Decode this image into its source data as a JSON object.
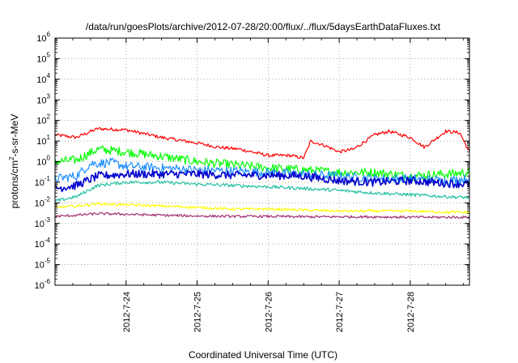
{
  "chart_data": {
    "type": "line",
    "title": "/data/run/goesPlots/archive/2012-07-28/20:00/flux/../flux/5daysEarthDataFluxes.txt",
    "xlabel": "Coordinated Universal Time (UTC)",
    "ylabel_parts": {
      "pre": "protons/cm",
      "sup": "2",
      "post": "-s-sr-MeV"
    },
    "y_scale": "log",
    "ylim_exponents": [
      -6,
      6
    ],
    "y_ticks": [
      {
        "base": "10",
        "exp": "6"
      },
      {
        "base": "10",
        "exp": "5"
      },
      {
        "base": "10",
        "exp": "4"
      },
      {
        "base": "10",
        "exp": "3"
      },
      {
        "base": "10",
        "exp": "2"
      },
      {
        "base": "10",
        "exp": "1"
      },
      {
        "base": "10",
        "exp": "0"
      },
      {
        "base": "10",
        "exp": "-1"
      },
      {
        "base": "10",
        "exp": "-2"
      },
      {
        "base": "10",
        "exp": "-3"
      },
      {
        "base": "10",
        "exp": "-4"
      },
      {
        "base": "10",
        "exp": "-5"
      },
      {
        "base": "10",
        "exp": "-6"
      }
    ],
    "x_range_days": [
      "2012-07-23 00:00",
      "2012-07-28 20:00"
    ],
    "x_ticks": [
      "2012-7-24",
      "2012-7-25",
      "2012-7-26",
      "2012-7-27",
      "2012-7-28"
    ],
    "grid": true,
    "series": [
      {
        "color": "#ff0000",
        "x": [
          23.0,
          23.3,
          23.6,
          24.0,
          24.2,
          24.5,
          25.0,
          25.3,
          25.6,
          26.0,
          26.3,
          26.5,
          26.6,
          26.8,
          27.0,
          27.2,
          27.5,
          27.7,
          28.0,
          28.2,
          28.5,
          28.7,
          28.83
        ],
        "values": [
          20,
          15,
          40,
          35,
          25,
          15,
          8,
          5,
          4,
          2,
          2,
          1.5,
          10,
          6,
          3,
          4,
          20,
          30,
          15,
          5,
          30,
          25,
          3
        ]
      },
      {
        "color": "#00ff00",
        "x": [
          23.0,
          23.3,
          23.6,
          24.0,
          24.5,
          25.0,
          25.5,
          26.0,
          26.5,
          27.0,
          27.5,
          28.0,
          28.5,
          28.83
        ],
        "values": [
          1.0,
          1.2,
          4.0,
          3.0,
          1.8,
          1.0,
          0.7,
          0.5,
          0.4,
          0.3,
          0.3,
          0.2,
          0.25,
          0.3
        ]
      },
      {
        "color": "#1e90ff",
        "x": [
          23.0,
          23.3,
          23.5,
          23.8,
          24.0,
          24.5,
          25.0,
          25.5,
          26.0,
          26.5,
          27.0,
          27.5,
          28.0,
          28.5,
          28.83
        ],
        "values": [
          0.15,
          0.2,
          0.8,
          0.9,
          0.6,
          0.5,
          0.4,
          0.35,
          0.3,
          0.25,
          0.2,
          0.15,
          0.15,
          0.12,
          0.15
        ]
      },
      {
        "color": "#0000cc",
        "x": [
          23.0,
          23.3,
          23.6,
          24.0,
          24.5,
          25.0,
          25.5,
          26.0,
          26.5,
          27.0,
          27.5,
          28.0,
          28.5,
          28.83
        ],
        "values": [
          0.05,
          0.07,
          0.2,
          0.25,
          0.25,
          0.25,
          0.22,
          0.22,
          0.2,
          0.12,
          0.1,
          0.12,
          0.09,
          0.08
        ]
      },
      {
        "color": "#20c0a0",
        "x": [
          23.0,
          23.3,
          23.6,
          24.0,
          24.5,
          25.0,
          25.5,
          26.0,
          26.5,
          27.0,
          27.5,
          28.0,
          28.5,
          28.83
        ],
        "values": [
          0.012,
          0.02,
          0.07,
          0.1,
          0.1,
          0.08,
          0.07,
          0.06,
          0.05,
          0.04,
          0.03,
          0.025,
          0.02,
          0.018
        ]
      },
      {
        "color": "#ffff00",
        "x": [
          23.0,
          23.3,
          23.6,
          24.0,
          24.5,
          25.0,
          25.5,
          26.0,
          26.5,
          27.0,
          27.5,
          28.0,
          28.5,
          28.83
        ],
        "values": [
          0.006,
          0.007,
          0.009,
          0.008,
          0.007,
          0.006,
          0.005,
          0.005,
          0.0045,
          0.004,
          0.004,
          0.004,
          0.0035,
          0.0035
        ]
      },
      {
        "color": "#a03070",
        "x": [
          23.0,
          23.3,
          23.6,
          24.0,
          24.5,
          25.0,
          25.5,
          26.0,
          26.5,
          27.0,
          27.5,
          28.0,
          28.5,
          28.83
        ],
        "values": [
          0.0022,
          0.0025,
          0.003,
          0.0028,
          0.0025,
          0.0023,
          0.0022,
          0.0022,
          0.0021,
          0.0021,
          0.0021,
          0.002,
          0.002,
          0.002
        ]
      }
    ]
  }
}
